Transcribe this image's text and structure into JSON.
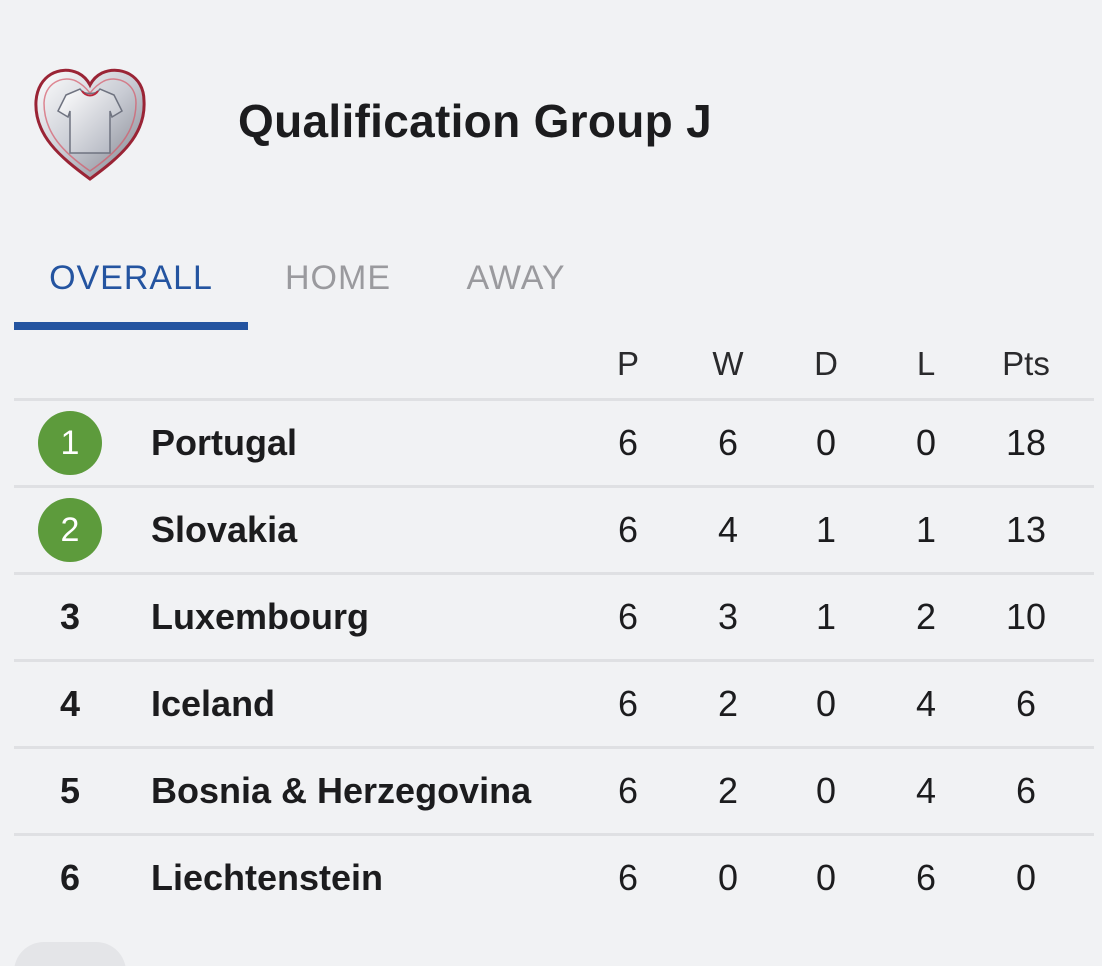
{
  "header": {
    "title": "Qualification Group J",
    "logo_icon": "european-qualifiers-shirt-heart-icon"
  },
  "tabs": [
    {
      "label": "OVERALL",
      "active": true
    },
    {
      "label": "HOME",
      "active": false
    },
    {
      "label": "AWAY",
      "active": false
    }
  ],
  "colors": {
    "accent": "#2454a0",
    "qualified": "#5d9b3c",
    "inactive_tab": "#9a9a9e",
    "background": "#f1f2f4",
    "divider": "#dfe0e3"
  },
  "standings": {
    "columns": [
      "P",
      "W",
      "D",
      "L",
      "Pts"
    ],
    "rows": [
      {
        "rank": "1",
        "team": "Portugal",
        "p": "6",
        "w": "6",
        "d": "0",
        "l": "0",
        "pts": "18",
        "qualified": true
      },
      {
        "rank": "2",
        "team": "Slovakia",
        "p": "6",
        "w": "4",
        "d": "1",
        "l": "1",
        "pts": "13",
        "qualified": true
      },
      {
        "rank": "3",
        "team": "Luxembourg",
        "p": "6",
        "w": "3",
        "d": "1",
        "l": "2",
        "pts": "10",
        "qualified": false
      },
      {
        "rank": "4",
        "team": "Iceland",
        "p": "6",
        "w": "2",
        "d": "0",
        "l": "4",
        "pts": "6",
        "qualified": false
      },
      {
        "rank": "5",
        "team": "Bosnia & Herzegovina",
        "p": "6",
        "w": "2",
        "d": "0",
        "l": "4",
        "pts": "6",
        "qualified": false
      },
      {
        "rank": "6",
        "team": "Liechtenstein",
        "p": "6",
        "w": "0",
        "d": "0",
        "l": "6",
        "pts": "0",
        "qualified": false
      }
    ]
  }
}
